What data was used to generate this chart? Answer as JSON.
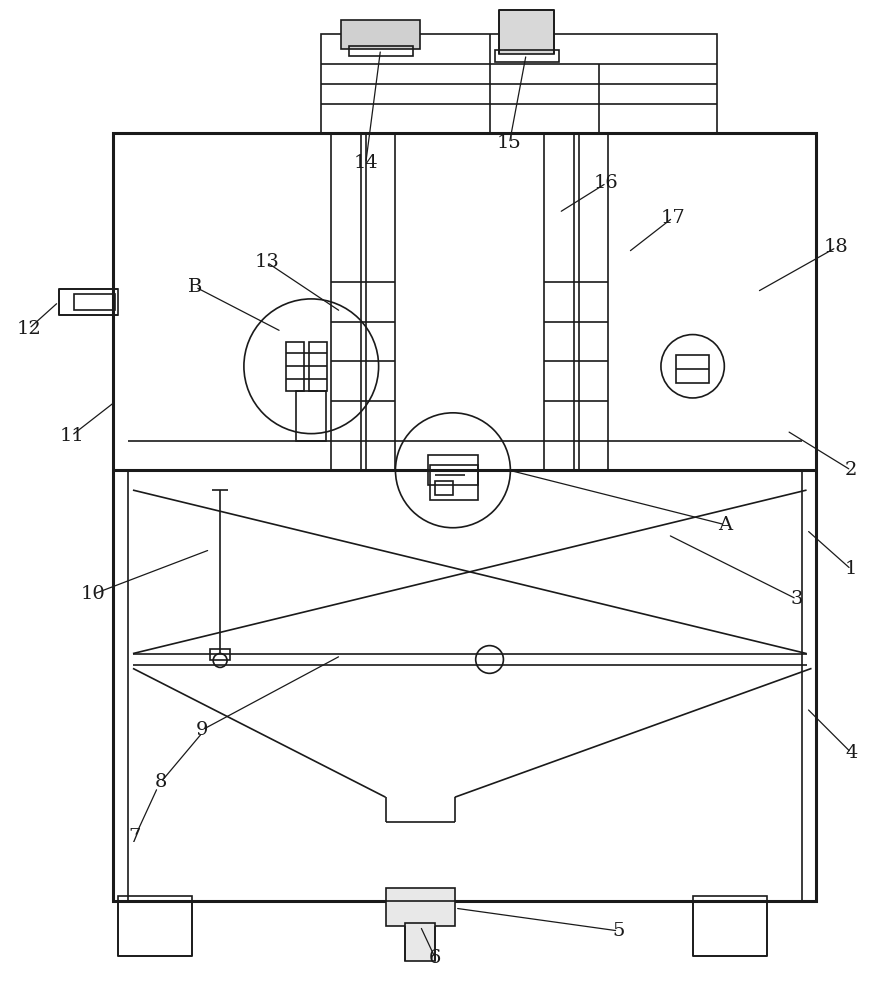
{
  "bg_color": "#ffffff",
  "line_color": "#1a1a1a",
  "lw": 1.2,
  "lw_thick": 2.2,
  "fig_width": 8.87,
  "fig_height": 10.0
}
